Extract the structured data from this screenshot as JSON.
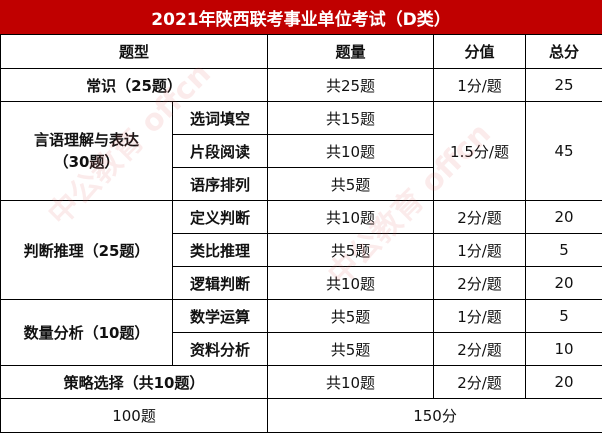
{
  "title": "2021年陕西联考事业单位考试（D类）",
  "header": {
    "topic": "题型",
    "count": "题量",
    "score": "分值",
    "total": "总分"
  },
  "changshi": {
    "label": "常识（25题）",
    "count": "共25题",
    "score": "1分/题",
    "total": "25"
  },
  "yanyu": {
    "label_line1": "言语理解与表达",
    "label_line2": "（30题）",
    "score": "1.5分/题",
    "total": "45",
    "items": [
      {
        "name": "选词填空",
        "count": "共15题"
      },
      {
        "name": "片段阅读",
        "count": "共10题"
      },
      {
        "name": "语序排列",
        "count": "共5题"
      }
    ]
  },
  "panduan": {
    "label": "判断推理（25题）",
    "items": [
      {
        "name": "定义判断",
        "count": "共10题",
        "score": "2分/题",
        "total": "20"
      },
      {
        "name": "类比推理",
        "count": "共5题",
        "score": "1分/题",
        "total": "5"
      },
      {
        "name": "逻辑判断",
        "count": "共10题",
        "score": "2分/题",
        "total": "20"
      }
    ]
  },
  "shuliang": {
    "label": "数量分析（10题）",
    "items": [
      {
        "name": "数学运算",
        "count": "共5题",
        "score": "1分/题",
        "total": "5"
      },
      {
        "name": "资料分析",
        "count": "共5题",
        "score": "2分/题",
        "total": "10"
      }
    ]
  },
  "celue": {
    "label": "策略选择（共10题）",
    "count": "共10题",
    "score": "2分/题",
    "total": "20"
  },
  "summary": {
    "count": "100题",
    "total": "150分"
  },
  "watermark": {
    "text": "中公教育 offcn"
  }
}
